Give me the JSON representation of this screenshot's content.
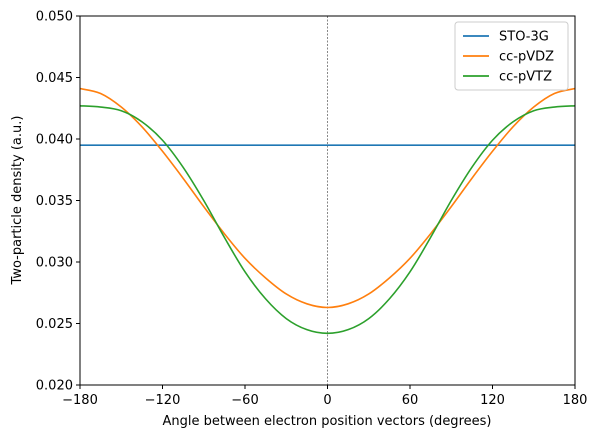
{
  "chart_data": {
    "type": "line",
    "xlabel": "Angle between electron position vectors (degrees)",
    "ylabel": "Two-particle density (a.u.)",
    "xlim": [
      -180,
      180
    ],
    "ylim": [
      0.02,
      0.05
    ],
    "xticks": [
      -180,
      -120,
      -60,
      0,
      60,
      120,
      180
    ],
    "xtick_labels": [
      "−180",
      "−120",
      "−60",
      "0",
      "60",
      "120",
      "180"
    ],
    "yticks": [
      0.02,
      0.025,
      0.03,
      0.035,
      0.04,
      0.045,
      0.05
    ],
    "ytick_labels": [
      "0.020",
      "0.025",
      "0.030",
      "0.035",
      "0.040",
      "0.045",
      "0.050"
    ],
    "grid": false,
    "legend_position": "top-right",
    "vertical_reference_line": {
      "x": 0,
      "color": "#555555",
      "style": "dashed"
    },
    "x": [
      -180,
      -165,
      -150,
      -135,
      -120,
      -105,
      -90,
      -75,
      -60,
      -45,
      -30,
      -15,
      0,
      15,
      30,
      45,
      60,
      75,
      90,
      105,
      120,
      135,
      150,
      165,
      180
    ],
    "series": [
      {
        "name": "STO-3G",
        "color": "#1f77b4",
        "values": [
          0.0395,
          0.0395,
          0.0395,
          0.0395,
          0.0395,
          0.0395,
          0.0395,
          0.0395,
          0.0395,
          0.0395,
          0.0395,
          0.0395,
          0.0395,
          0.0395,
          0.0395,
          0.0395,
          0.0395,
          0.0395,
          0.0395,
          0.0395,
          0.0395,
          0.0395,
          0.0395,
          0.0395,
          0.0395
        ]
      },
      {
        "name": "cc-pVDZ",
        "color": "#ff7f0e",
        "values": [
          0.0441,
          0.0437,
          0.0426,
          0.041,
          0.039,
          0.0368,
          0.0345,
          0.0323,
          0.0303,
          0.0287,
          0.0274,
          0.0266,
          0.0263,
          0.0266,
          0.0274,
          0.0287,
          0.0303,
          0.0323,
          0.0345,
          0.0368,
          0.039,
          0.041,
          0.0426,
          0.0437,
          0.0441
        ]
      },
      {
        "name": "cc-pVTZ",
        "color": "#2ca02c",
        "values": [
          0.0427,
          0.0426,
          0.0423,
          0.0414,
          0.0399,
          0.0377,
          0.035,
          0.032,
          0.0292,
          0.027,
          0.0254,
          0.0245,
          0.0242,
          0.0245,
          0.0254,
          0.027,
          0.0292,
          0.032,
          0.035,
          0.0377,
          0.0399,
          0.0414,
          0.0423,
          0.0426,
          0.0427
        ]
      }
    ]
  }
}
